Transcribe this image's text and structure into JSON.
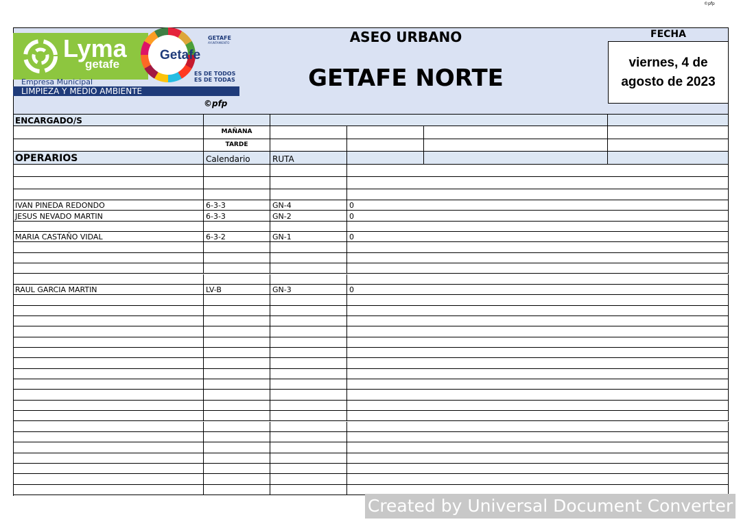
{
  "header": {
    "copyright_top": "©pfp",
    "section": "ASEO URBANO",
    "title": "GETAFE NORTE",
    "date_label": "FECHA",
    "date": "viernes, 4 de agosto de 2023",
    "copyright": "©pfp",
    "logo": {
      "brand": "Lyma",
      "brand_sub": "getafe",
      "company": "Empresa Municipal",
      "department": "LIMPIEZA Y MEDIO AMBIENTE",
      "city": "GETAFE",
      "city_sub": "AYUNTAMIENTO",
      "city_logo": "Getafe",
      "slogan_1": "ES DE TODOS",
      "slogan_2": "ES DE TODAS"
    }
  },
  "table": {
    "encargado": "ENCARGADO/S",
    "morning": "MAÑANA",
    "afternoon": "TARDE",
    "operarios": "OPERARIOS",
    "calendar": "Calendario",
    "route": "RUTA",
    "rows": [
      null,
      null,
      null,
      [
        "IVAN PINEDA REDONDO",
        "6-3-3",
        "GN-4",
        0
      ],
      [
        "JESUS NEVADO MARTIN",
        "6-3-3",
        "GN-2",
        0
      ],
      null,
      [
        "MARIA CASTAÑO VIDAL",
        "6-3-2",
        "GN-1",
        0
      ],
      null,
      null,
      null,
      null,
      [
        "RAUL GARCIA MARTIN",
        "LV-B",
        "GN-3",
        0
      ],
      null,
      null,
      null,
      null,
      null,
      null,
      null,
      null,
      null,
      null,
      null,
      null,
      null,
      null,
      null,
      null,
      null,
      null,
      null
    ]
  },
  "footer": {
    "watermark": "Created by Universal Document Converter"
  }
}
